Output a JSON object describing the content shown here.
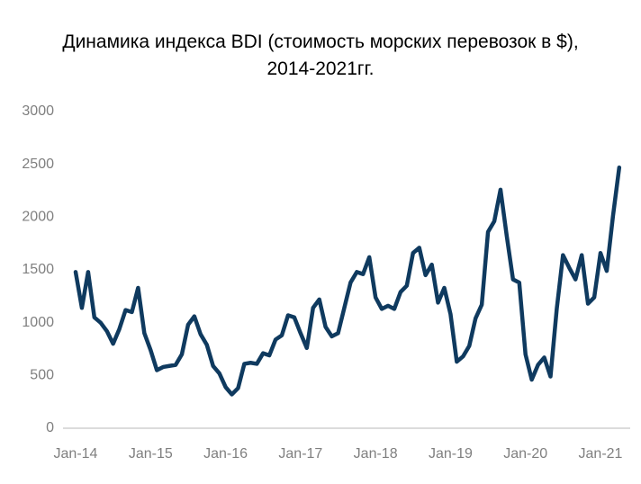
{
  "chart_data": {
    "type": "line",
    "title": "Динамика индекса BDI (стоимость морских перевозок в $),\n2014-2021гг.",
    "categories": [
      "Jan-14",
      null,
      null,
      null,
      null,
      null,
      null,
      null,
      null,
      null,
      null,
      null,
      "Jan-15",
      null,
      null,
      null,
      null,
      null,
      null,
      null,
      null,
      null,
      null,
      null,
      "Jan-16",
      null,
      null,
      null,
      null,
      null,
      null,
      null,
      null,
      null,
      null,
      null,
      "Jan-17",
      null,
      null,
      null,
      null,
      null,
      null,
      null,
      null,
      null,
      null,
      null,
      "Jan-18",
      null,
      null,
      null,
      null,
      null,
      null,
      null,
      null,
      null,
      null,
      null,
      "Jan-19",
      null,
      null,
      null,
      null,
      null,
      null,
      null,
      null,
      null,
      null,
      null,
      "Jan-20",
      null,
      null,
      null,
      null,
      null,
      null,
      null,
      null,
      null,
      null,
      null,
      "Jan-21",
      null,
      null,
      null
    ],
    "series": [
      {
        "name": "BDI",
        "color": "#0f3a5f",
        "values": [
          1480,
          1140,
          1480,
          1050,
          1000,
          920,
          800,
          940,
          1120,
          1100,
          1330,
          900,
          740,
          550,
          580,
          590,
          600,
          700,
          980,
          1060,
          890,
          790,
          590,
          520,
          390,
          320,
          380,
          610,
          620,
          610,
          710,
          690,
          840,
          880,
          1070,
          1050,
          900,
          760,
          1140,
          1220,
          960,
          870,
          900,
          1140,
          1380,
          1480,
          1460,
          1620,
          1240,
          1130,
          1160,
          1130,
          1290,
          1350,
          1660,
          1710,
          1450,
          1550,
          1190,
          1330,
          1080,
          630,
          680,
          780,
          1040,
          1170,
          1860,
          1960,
          2260,
          1820,
          1410,
          1380,
          700,
          460,
          600,
          670,
          490,
          1130,
          1640,
          1520,
          1410,
          1640,
          1180,
          1240,
          1660,
          1490,
          2010,
          2470
        ]
      }
    ],
    "ylim": [
      0,
      3000
    ],
    "yticks": [
      0,
      500,
      1000,
      1500,
      2000,
      2500,
      3000
    ],
    "grid": false
  }
}
